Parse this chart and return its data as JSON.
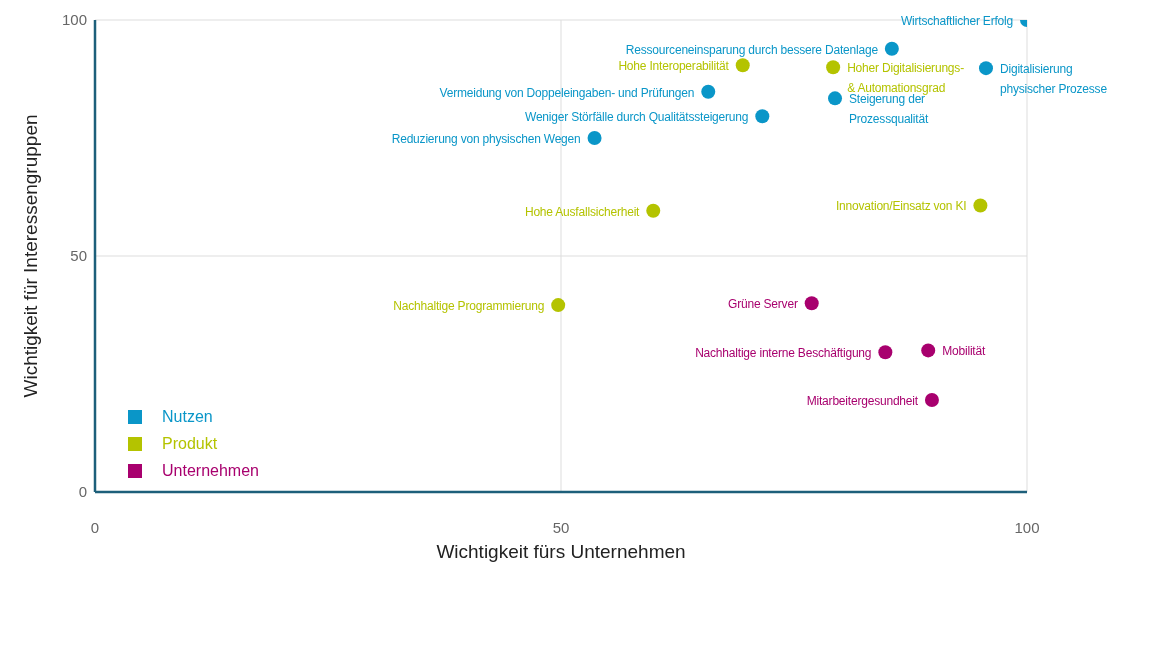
{
  "chart_data": {
    "type": "scatter",
    "xlabel": "Wichtigkeit fürs Unternehmen",
    "ylabel": "Wichtigkeit für Interessengruppen",
    "xlim": [
      0,
      100
    ],
    "ylim": [
      0,
      100
    ],
    "xticks": [
      0,
      50,
      100
    ],
    "yticks": [
      0,
      50,
      100
    ],
    "grid": true,
    "legend": "bottom left",
    "marker": "circle",
    "series": [
      {
        "name": "Nutzen",
        "color": "#0a96c8",
        "x": [
          100,
          85.5,
          95.6,
          65.8,
          79.4,
          71.6,
          53.6
        ],
        "values": [
          100,
          93.9,
          89.8,
          84.8,
          83.4,
          79.6,
          75
        ]
      },
      {
        "name": "Produkt",
        "color": "#b4c300",
        "x": [
          69.5,
          79.2,
          59.9,
          95,
          49.7
        ],
        "values": [
          90.4,
          90,
          59.6,
          60.7,
          39.6
        ]
      },
      {
        "name": "Unternehmen",
        "color": "#a8006e",
        "x": [
          76.9,
          84.8,
          89.4,
          89.8
        ],
        "values": [
          40,
          29.6,
          30,
          19.5
        ]
      }
    ],
    "annotations": [
      {
        "text": "Wirtschaftlicher Erfolg",
        "x": 100,
        "y": 100
      },
      {
        "text": "Ressourceneinsparung durch bessere Datenlage",
        "x": 85.5,
        "y": 93.9
      },
      {
        "text": "Digitalisierung\nphysischer Prozesse",
        "x": 95.6,
        "y": 89.8
      },
      {
        "text": "Vermeidung von Doppeleingaben- und Prüfungen",
        "x": 65.8,
        "y": 84.8
      },
      {
        "text": "Steigerung der\nProzessqualität",
        "x": 79.4,
        "y": 83.4
      },
      {
        "text": "Weniger Störfälle durch Qualitätssteigerung",
        "x": 71.6,
        "y": 79.6
      },
      {
        "text": "Reduzierung von physischen Wegen",
        "x": 53.6,
        "y": 75
      },
      {
        "text": "Hohe Interoperabilität",
        "x": 69.5,
        "y": 90.4
      },
      {
        "text": "Hoher Digitalisierungs-\n& Automationsgrad",
        "x": 79.2,
        "y": 90
      },
      {
        "text": "Hohe Ausfallsicherheit",
        "x": 59.9,
        "y": 59.6
      },
      {
        "text": "Innovation/Einsatz von KI",
        "x": 95,
        "y": 60.7
      },
      {
        "text": "Nachhaltige Programmierung",
        "x": 49.7,
        "y": 39.6
      },
      {
        "text": "Grüne Server",
        "x": 76.9,
        "y": 40
      },
      {
        "text": "Nachhaltige interne Beschäftigung",
        "x": 84.8,
        "y": 29.6
      },
      {
        "text": "Mobilität",
        "x": 89.4,
        "y": 30
      },
      {
        "text": "Mitarbeitergesundheit",
        "x": 89.8,
        "y": 19.5
      }
    ]
  }
}
